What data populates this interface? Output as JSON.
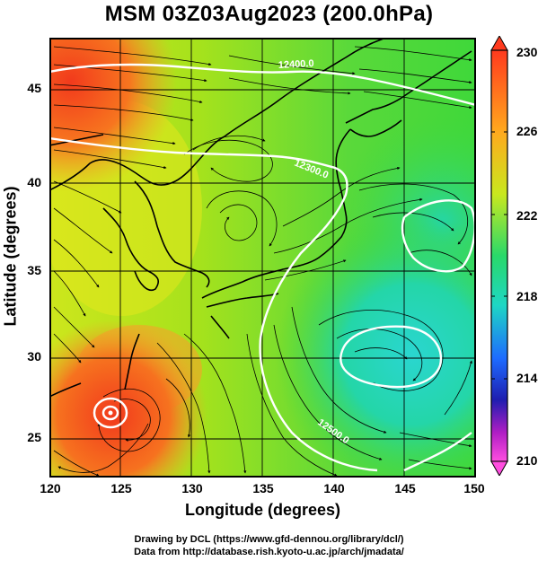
{
  "title": "MSM 03Z03Aug2023 (200.0hPa)",
  "axes": {
    "xlabel": "Longitude (degrees)",
    "ylabel": "Latitude  (degrees)",
    "xticks": [
      "120",
      "125",
      "130",
      "135",
      "140",
      "145",
      "150"
    ],
    "yticks": [
      "45",
      "40",
      "35",
      "30",
      "25"
    ]
  },
  "colorbar": {
    "labels": [
      "230",
      "226",
      "222",
      "218",
      "214",
      "210"
    ],
    "colors": [
      "#ff3a1e",
      "#ffaa1e",
      "#c9e81e",
      "#29d96a",
      "#1ed7c4",
      "#1e6bff",
      "#1e1eb0",
      "#b01ec4",
      "#ff4ee0"
    ]
  },
  "contours": {
    "labels": [
      "12400.0",
      "12300.0",
      "12500.0"
    ],
    "color": "#ffffff"
  },
  "credit": {
    "line1": "Drawing by DCL (https://www.gfd-dennou.org/library/dcl/)",
    "line2": "Data from http://database.rish.kyoto-u.ac.jp/arch/jmadata/"
  },
  "map_colors": {
    "hot": "#f23a1c",
    "warm": "#f7a12a",
    "yellow": "#e4e81e",
    "lime": "#a6e21c",
    "green": "#3fd83a",
    "teal": "#24d6a8",
    "cyan": "#2ad6d0"
  }
}
